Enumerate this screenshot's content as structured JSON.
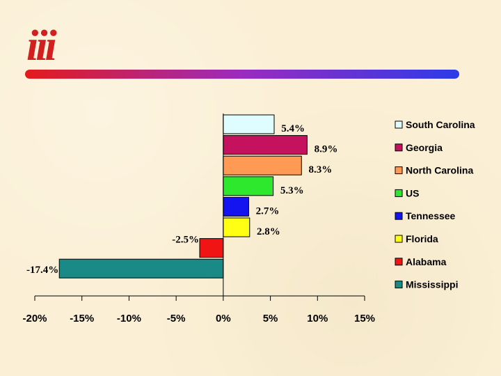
{
  "logo_text": "iii",
  "colors": {
    "divider_left": "#e31b1b",
    "divider_mid": "#9b2bbf",
    "divider_right": "#2c3be8",
    "logo": "#d21f1f"
  },
  "chart_data": {
    "type": "bar",
    "orientation": "horizontal",
    "categories": [
      "South Carolina",
      "Georgia",
      "North Carolina",
      "US",
      "Tennessee",
      "Florida",
      "Alabama",
      "Mississippi"
    ],
    "values": [
      5.4,
      8.9,
      8.3,
      5.3,
      2.7,
      2.8,
      -2.5,
      -17.4
    ],
    "value_labels": [
      "5.4%",
      "8.9%",
      "8.3%",
      "5.3%",
      "2.7%",
      "2.8%",
      "-2.5%",
      "-17.4%"
    ],
    "bar_colors": [
      "#dffcff",
      "#c4125e",
      "#ff9a55",
      "#2ee82e",
      "#1414f0",
      "#ffff14",
      "#f01414",
      "#1a8a86"
    ],
    "xlim": [
      -20,
      15
    ],
    "xticks": [
      -20,
      -15,
      -10,
      -5,
      0,
      5,
      10,
      15
    ],
    "xtick_labels": [
      "-20%",
      "-15%",
      "-10%",
      "-5%",
      "0%",
      "5%",
      "10%",
      "15%"
    ],
    "legend": [
      "South Carolina",
      "Georgia",
      "North Carolina",
      "US",
      "Tennessee",
      "Florida",
      "Alabama",
      "Mississippi"
    ],
    "legend_placement": "right",
    "title": "",
    "xlabel": "",
    "ylabel": "",
    "grid": false
  }
}
